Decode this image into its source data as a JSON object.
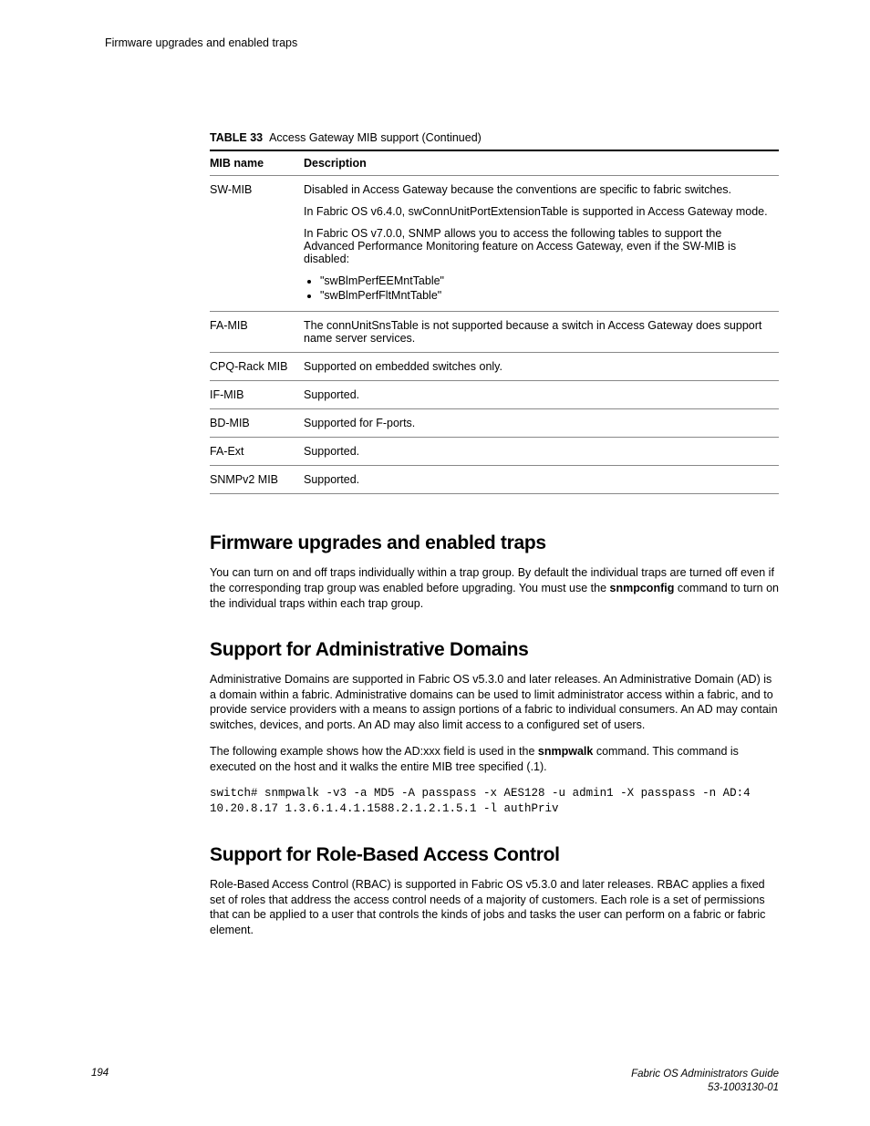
{
  "running_header": "Firmware upgrades and enabled traps",
  "table": {
    "label": "TABLE 33",
    "title": "Access Gateway MIB support (Continued)",
    "col_name": "MIB name",
    "col_desc": "Description",
    "rows": {
      "sw_mib": {
        "name": "SW-MIB",
        "p1": "Disabled in Access Gateway because the conventions are specific to fabric switches.",
        "p2": "In Fabric OS v6.4.0, swConnUnitPortExtensionTable is supported in Access Gateway mode.",
        "p3": "In Fabric OS v7.0.0, SNMP allows you to access the following tables to support the Advanced Performance Monitoring feature on Access Gateway, even if the SW-MIB is disabled:",
        "li1": "\"swBlmPerfEEMntTable\"",
        "li2": "\"swBlmPerfFltMntTable\""
      },
      "fa_mib": {
        "name": "FA-MIB",
        "p1": "The connUnitSnsTable is not supported because a switch in Access Gateway does support name server services."
      },
      "cpq": {
        "name": "CPQ-Rack MIB",
        "p1": "Supported on embedded switches only."
      },
      "if_mib": {
        "name": "IF-MIB",
        "p1": "Supported."
      },
      "bd_mib": {
        "name": "BD-MIB",
        "p1": "Supported for F-ports."
      },
      "fa_ext": {
        "name": "FA-Ext",
        "p1": "Supported."
      },
      "snmpv2": {
        "name": "SNMPv2 MIB",
        "p1": "Supported."
      }
    }
  },
  "sections": {
    "s1": {
      "title": "Firmware upgrades and enabled traps",
      "p1a": "You can turn on and off traps individually within a trap group. By default the individual traps are turned off even if the corresponding trap group was enabled before upgrading. You must use the ",
      "p1b": "snmpconfig",
      "p1c": " command to turn on the individual traps within each trap group."
    },
    "s2": {
      "title": "Support for Administrative Domains",
      "p1": "Administrative Domains are supported in Fabric OS v5.3.0 and later releases. An Administrative Domain (AD) is a domain within a fabric. Administrative domains can be used to limit administrator access within a fabric, and to provide service providers with a means to assign portions of a fabric to individual consumers. An AD may contain switches, devices, and ports. An AD may also limit access to a configured set of users.",
      "p2a": "The following example shows how the AD:xxx field is used in the ",
      "p2b": "snmpwalk",
      "p2c": " command. This command is executed on the host and it walks the entire MIB tree specified (.1).",
      "code": "switch# snmpwalk -v3 -a MD5 -A passpass -x AES128 -u admin1 -X passpass -n AD:4 10.20.8.17 1.3.6.1.4.1.1588.2.1.2.1.5.1 -l authPriv"
    },
    "s3": {
      "title": "Support for Role-Based Access Control",
      "p1": "Role-Based Access Control (RBAC) is supported in Fabric OS v5.3.0 and later releases. RBAC applies a fixed set of roles that address the access control needs of a majority of customers. Each role is a set of permissions that can be applied to a user that controls the kinds of jobs and tasks the user can perform on a fabric or fabric element."
    }
  },
  "footer": {
    "pagenum": "194",
    "doc_title": "Fabric OS Administrators Guide",
    "doc_num": "53-1003130-01"
  }
}
